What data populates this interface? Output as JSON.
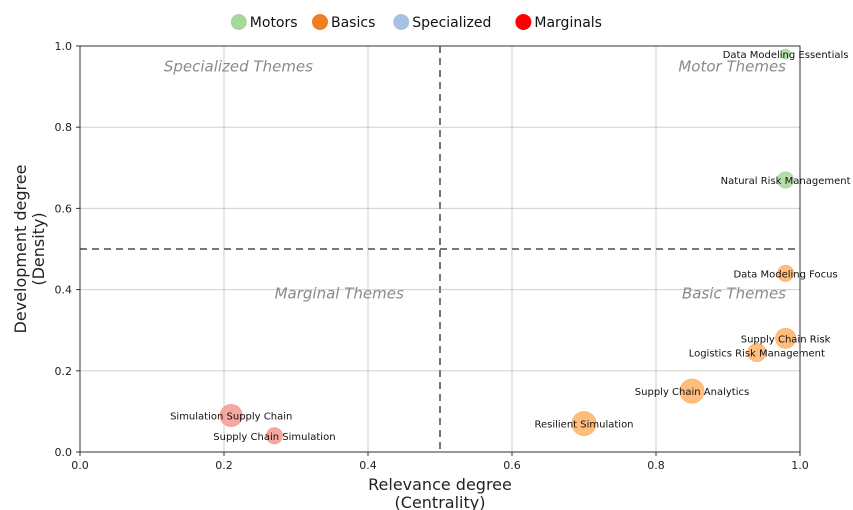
{
  "chart_data": {
    "type": "scatter",
    "title": "",
    "xlabel": [
      "Relevance degree",
      "(Centrality)"
    ],
    "ylabel": [
      "Development degree",
      "(Density)"
    ],
    "xlim": [
      0.0,
      1.0
    ],
    "ylim": [
      0.0,
      1.0
    ],
    "xticks": [
      "0.0",
      "0.2",
      "0.4",
      "0.6",
      "0.8",
      "1.0"
    ],
    "yticks": [
      "0.0",
      "0.2",
      "0.4",
      "0.6",
      "0.8",
      "1.0"
    ],
    "grid": true,
    "threshold_x": 0.5,
    "threshold_y": 0.5,
    "legend_position": "top-center",
    "legend": [
      {
        "name": "Motors",
        "color": "#a6d89b"
      },
      {
        "name": "Basics",
        "color": "#f07f24"
      },
      {
        "name": "Specialized",
        "color": "#a8c0e4"
      },
      {
        "name": "Marginals",
        "color": "#ff0000"
      }
    ],
    "quadrants": [
      {
        "label": "Specialized Themes",
        "x": 0.22,
        "y": 0.95
      },
      {
        "label": "Motor Themes",
        "x": 0.95,
        "y": 0.95
      },
      {
        "label": "Marginal Themes",
        "x": 0.36,
        "y": 0.39
      },
      {
        "label": "Basic Themes",
        "x": 0.95,
        "y": 0.39
      }
    ],
    "points": [
      {
        "label": "Data Modeling Essentials",
        "x": 0.98,
        "y": 0.98,
        "category": "Motors",
        "color": "#a6d89b",
        "size": 5
      },
      {
        "label": "Natural Risk Management",
        "x": 0.98,
        "y": 0.67,
        "category": "Motors",
        "color": "#a6d89b",
        "size": 8
      },
      {
        "label": "Data Modeling Focus",
        "x": 0.98,
        "y": 0.44,
        "category": "Basics",
        "color": "#ffb366",
        "size": 8
      },
      {
        "label": "Supply Chain Risk",
        "x": 0.98,
        "y": 0.28,
        "category": "Basics",
        "color": "#ffb366",
        "size": 10
      },
      {
        "label": "Logistics Risk Management",
        "x": 0.94,
        "y": 0.245,
        "category": "Basics",
        "color": "#ffb366",
        "size": 9
      },
      {
        "label": "Supply Chain Analytics",
        "x": 0.85,
        "y": 0.15,
        "category": "Basics",
        "color": "#ffb366",
        "size": 12
      },
      {
        "label": "Resilient Simulation",
        "x": 0.7,
        "y": 0.07,
        "category": "Basics",
        "color": "#ffb366",
        "size": 12
      },
      {
        "label": "Simulation Supply Chain",
        "x": 0.21,
        "y": 0.09,
        "category": "Marginals",
        "color": "#f59a90",
        "size": 11
      },
      {
        "label": "Supply Chain Simulation",
        "x": 0.27,
        "y": 0.04,
        "category": "Marginals",
        "color": "#f59a90",
        "size": 8
      }
    ]
  }
}
